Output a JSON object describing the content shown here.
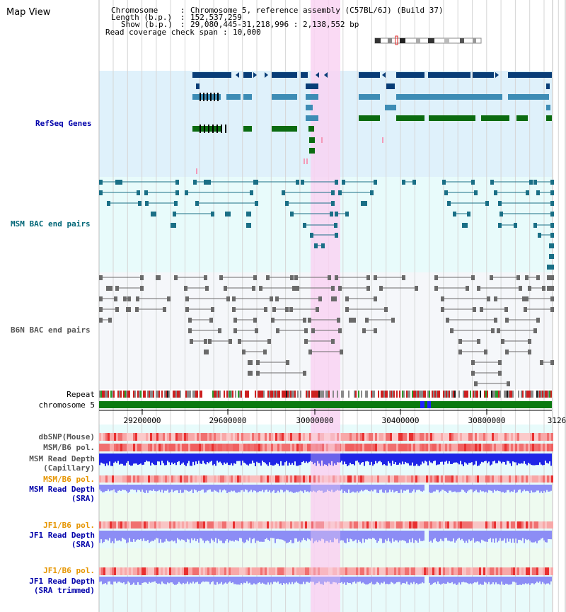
{
  "app": {
    "title": "Map View"
  },
  "header": {
    "chromosome_key": "Chromosome",
    "chromosome_val": "Chromosome 5, reference assembly (C57BL/6J) (Build 37)",
    "length_key": "Length (b.p.)",
    "length_val": "152,537,259",
    "show_key": "Show (b.p.)",
    "show_val": "29,080,445-31,218,996 : 2,138,552 bp",
    "span_key": "Read coverage check span",
    "span_val": "10,000"
  },
  "tracks": {
    "refseq": "RefSeq Genes",
    "msm_bac": "MSM BAC end pairs",
    "b6n_bac": "B6N BAC end pairs",
    "repeat": "Repeat",
    "chromosome": "chromosome 5",
    "dbsnp": "dbSNP(Mouse)",
    "msm_b6_pol": "MSM/B6 pol.",
    "msm_depth_cap_1": "MSM Read Depth",
    "msm_depth_cap_2": "(Capillary)",
    "msm_b6_pol_2": "MSM/B6 pol.",
    "msm_depth_sra_1": "MSM Read Depth",
    "msm_depth_sra_2": "(SRA)",
    "jf1_b6_pol": "JF1/B6 pol.",
    "jf1_depth_sra_1": "JF1 Read Depth",
    "jf1_depth_sra_2": "(SRA)",
    "jf1_b6_pol_2": "JF1/B6 pol.",
    "jf1_depth_trim_1": "JF1 Read Depth",
    "jf1_depth_trim_2": "(SRA trimmed)"
  },
  "axis": {
    "ticks": [
      "29200000",
      "29600000",
      "30000000",
      "30400000",
      "30800000",
      "3126"
    ]
  },
  "colors": {
    "refseq_bg": "#dff1fb",
    "msm_bg": "#e8fbfb",
    "b6n_bg": "#f5f7fa",
    "highlight": "#f9d4f2",
    "gene_dark": "#083d77",
    "gene_mid": "#3d8cb5",
    "gene_green": "#0b6b10",
    "chrom_green": "#0b7a10",
    "depth_blue": "#1f25e6",
    "depth_light": "#8c8df5",
    "pol_red": "#f05050",
    "bac_teal": "#1a6f86"
  }
}
